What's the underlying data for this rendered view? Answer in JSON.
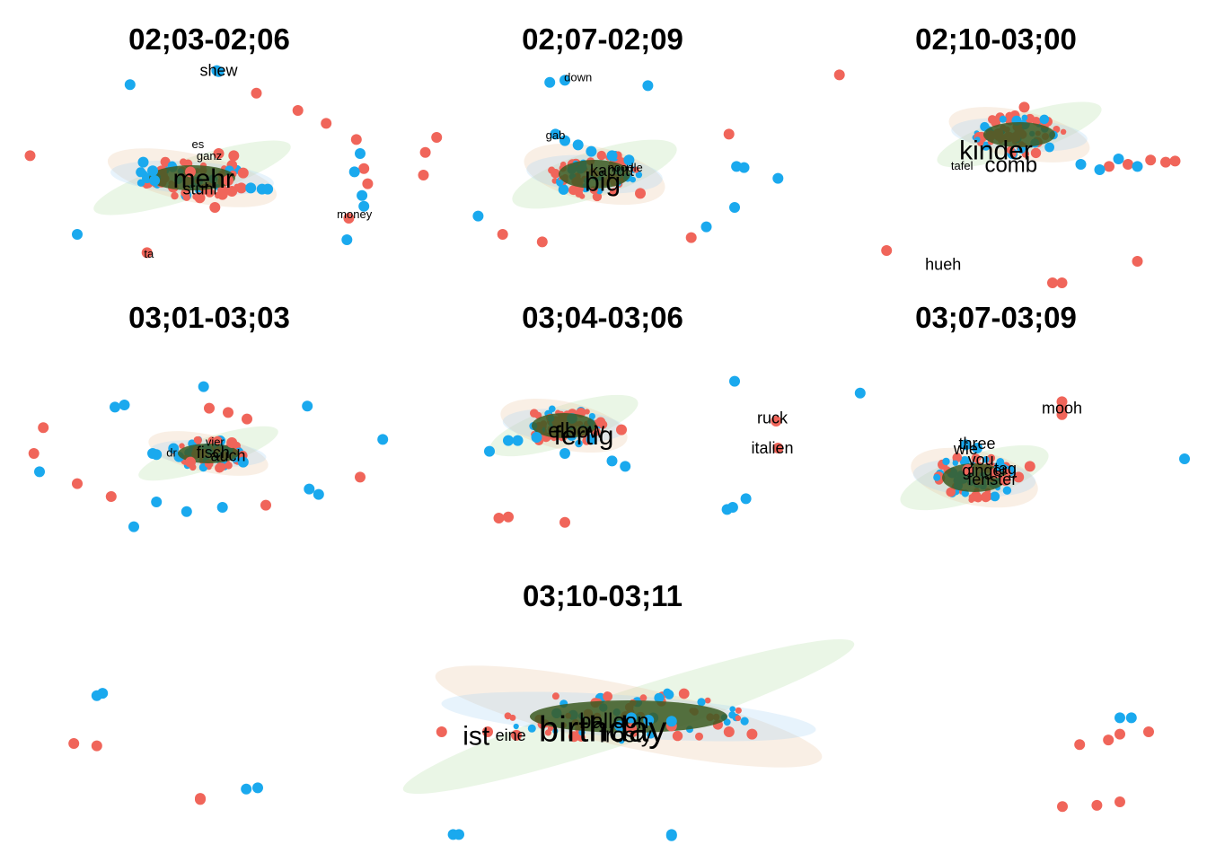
{
  "colors": {
    "series_a": "#F0655A",
    "series_b": "#1AA9EE",
    "cluster_core": "#3C5A22",
    "halo_green": "#B5E0A6",
    "halo_tan": "#E8C7A0",
    "halo_blue": "#A9D3F5",
    "halo_pink": "#F5B7E8"
  },
  "chart_data": [
    {
      "type": "scatter",
      "title": "02;03-02;06",
      "series_a_points": [
        [
          -0.95,
          0.18
        ],
        [
          0.25,
          0.76
        ],
        [
          0.47,
          0.6
        ],
        [
          0.62,
          0.48
        ],
        [
          0.78,
          0.33
        ],
        [
          0.82,
          0.06
        ],
        [
          0.84,
          -0.08
        ],
        [
          0.74,
          -0.4
        ],
        [
          -0.33,
          -0.72
        ],
        [
          0.18,
          0.02
        ],
        [
          0.17,
          -0.12
        ],
        [
          0.12,
          -0.15
        ],
        [
          -0.1,
          0.03
        ],
        [
          0.05,
          0.2
        ],
        [
          0.07,
          -0.18
        ],
        [
          0.1,
          -0.05
        ],
        [
          0.13,
          0.18
        ],
        [
          -0.05,
          -0.21
        ],
        [
          0.03,
          -0.3
        ]
      ],
      "series_b_points": [
        [
          0.04,
          0.97
        ],
        [
          0.05,
          0.96
        ],
        [
          -0.42,
          0.84
        ],
        [
          0.77,
          0.03
        ],
        [
          0.8,
          0.2
        ],
        [
          0.81,
          -0.19
        ],
        [
          0.82,
          -0.29
        ],
        [
          0.73,
          -0.6
        ],
        [
          -0.7,
          -0.55
        ],
        [
          -0.3,
          0.04
        ],
        [
          -0.35,
          0.12
        ],
        [
          0.22,
          -0.12
        ],
        [
          0.28,
          -0.13
        ],
        [
          0.31,
          -0.13
        ],
        [
          -0.29,
          -0.05
        ]
      ],
      "labels": [
        {
          "text": "shew",
          "x": 0.05,
          "y": 0.96,
          "size": "medium"
        },
        {
          "text": "es",
          "x": -0.06,
          "y": 0.28,
          "size": "small"
        },
        {
          "text": "ganz",
          "x": 0.0,
          "y": 0.17,
          "size": "small"
        },
        {
          "text": "money",
          "x": 0.77,
          "y": -0.37,
          "size": "small"
        },
        {
          "text": "ta",
          "x": -0.32,
          "y": -0.74,
          "size": "small"
        },
        {
          "text": "mehr",
          "x": -0.03,
          "y": -0.05,
          "size": "xlarge"
        },
        {
          "text": "stuhl",
          "x": -0.05,
          "y": -0.14,
          "size": "medium"
        }
      ]
    },
    {
      "type": "scatter",
      "title": "02;07-02;09",
      "series_a_points": [
        [
          0.67,
          0.38
        ],
        [
          -0.88,
          0.35
        ],
        [
          -0.94,
          0.21
        ],
        [
          -0.95,
          0.0
        ],
        [
          -0.53,
          -0.55
        ],
        [
          -0.32,
          -0.62
        ],
        [
          0.47,
          -0.58
        ],
        [
          0.2,
          -0.17
        ]
      ],
      "series_b_points": [
        [
          -0.28,
          0.86
        ],
        [
          -0.2,
          0.88
        ],
        [
          0.24,
          0.83
        ],
        [
          0.71,
          0.08
        ],
        [
          0.75,
          0.07
        ],
        [
          0.93,
          -0.03
        ],
        [
          0.7,
          -0.3
        ],
        [
          0.55,
          -0.48
        ],
        [
          -0.66,
          -0.38
        ],
        [
          -0.25,
          0.38
        ],
        [
          -0.2,
          0.32
        ],
        [
          -0.13,
          0.28
        ],
        [
          -0.06,
          0.22
        ],
        [
          0.05,
          0.18
        ],
        [
          0.14,
          0.14
        ]
      ],
      "labels": [
        {
          "text": "down",
          "x": -0.13,
          "y": 0.9,
          "size": "small"
        },
        {
          "text": "gab",
          "x": -0.25,
          "y": 0.36,
          "size": "small"
        },
        {
          "text": "big",
          "x": 0.0,
          "y": -0.08,
          "size": "xlarge"
        },
        {
          "text": "kaputt",
          "x": 0.05,
          "y": 0.03,
          "size": "medium"
        },
        {
          "text": "noodle",
          "x": 0.12,
          "y": 0.06,
          "size": "small"
        }
      ]
    },
    {
      "type": "scatter",
      "title": "02;10-03;00",
      "series_a_points": [
        [
          -0.83,
          0.93
        ],
        [
          -0.58,
          -0.7
        ],
        [
          0.75,
          -0.8
        ],
        [
          0.3,
          -1.0
        ],
        [
          0.35,
          -1.0
        ],
        [
          0.95,
          0.13
        ],
        [
          0.9,
          0.12
        ],
        [
          0.82,
          0.14
        ],
        [
          0.7,
          0.1
        ],
        [
          0.6,
          0.08
        ],
        [
          0.15,
          0.63
        ]
      ],
      "series_b_points": [
        [
          0.65,
          0.15
        ],
        [
          0.75,
          0.08
        ],
        [
          0.55,
          0.05
        ],
        [
          0.45,
          0.1
        ]
      ],
      "labels": [
        {
          "text": "hueh",
          "x": -0.28,
          "y": -0.84,
          "size": "medium"
        },
        {
          "text": "tafel",
          "x": -0.18,
          "y": 0.08,
          "size": "small"
        },
        {
          "text": "kinder",
          "x": 0.0,
          "y": 0.21,
          "size": "xlarge"
        },
        {
          "text": "comb",
          "x": 0.08,
          "y": 0.08,
          "size": "large"
        }
      ]
    },
    {
      "type": "scatter",
      "title": "03;01-03;03",
      "series_a_points": [
        [
          -0.88,
          0.24
        ],
        [
          -0.93,
          0.0
        ],
        [
          -0.7,
          -0.28
        ],
        [
          -0.52,
          -0.4
        ],
        [
          0.8,
          -0.22
        ],
        [
          0.3,
          -0.48
        ],
        [
          0.0,
          0.42
        ],
        [
          0.1,
          0.38
        ],
        [
          0.2,
          0.32
        ],
        [
          0.12,
          0.1
        ],
        [
          -0.1,
          -0.08
        ]
      ],
      "series_b_points": [
        [
          -0.5,
          0.43
        ],
        [
          -0.45,
          0.45
        ],
        [
          -0.03,
          0.62
        ],
        [
          0.52,
          0.44
        ],
        [
          0.92,
          0.13
        ],
        [
          0.58,
          -0.38
        ],
        [
          0.53,
          -0.33
        ],
        [
          -0.9,
          -0.17
        ],
        [
          -0.28,
          -0.45
        ],
        [
          -0.3,
          0.0
        ],
        [
          -0.28,
          -0.01
        ],
        [
          0.18,
          -0.08
        ],
        [
          -0.12,
          -0.54
        ],
        [
          -0.4,
          -0.68
        ],
        [
          0.07,
          -0.5
        ]
      ],
      "labels": [
        {
          "text": "dr",
          "x": -0.2,
          "y": 0.0,
          "size": "small"
        },
        {
          "text": "vier",
          "x": 0.03,
          "y": 0.1,
          "size": "small"
        },
        {
          "text": "fisch",
          "x": 0.02,
          "y": 0.0,
          "size": "medium"
        },
        {
          "text": "auch",
          "x": 0.1,
          "y": -0.03,
          "size": "medium"
        }
      ]
    },
    {
      "type": "scatter",
      "title": "03;04-03;06",
      "series_a_points": [
        [
          0.92,
          0.3
        ],
        [
          0.93,
          0.05
        ],
        [
          -0.55,
          -0.6
        ],
        [
          -0.2,
          -0.64
        ],
        [
          -0.5,
          -0.59
        ],
        [
          0.1,
          0.22
        ]
      ],
      "series_b_points": [
        [
          0.7,
          0.67
        ],
        [
          0.66,
          -0.52
        ],
        [
          0.69,
          -0.5
        ],
        [
          0.76,
          -0.42
        ],
        [
          -0.5,
          0.12
        ],
        [
          -0.45,
          0.12
        ],
        [
          -0.35,
          0.15
        ],
        [
          -0.6,
          0.02
        ],
        [
          -0.2,
          0.0
        ],
        [
          0.05,
          -0.07
        ],
        [
          0.12,
          -0.12
        ]
      ],
      "labels": [
        {
          "text": "ruck",
          "x": 0.9,
          "y": 0.32,
          "size": "medium"
        },
        {
          "text": "italien",
          "x": 0.9,
          "y": 0.04,
          "size": "medium"
        },
        {
          "text": "elbow",
          "x": -0.14,
          "y": 0.2,
          "size": "large"
        },
        {
          "text": "fertig",
          "x": -0.1,
          "y": 0.15,
          "size": "xlarge"
        }
      ]
    },
    {
      "type": "scatter",
      "title": "03;07-03;09",
      "series_a_points": [
        [
          0.35,
          0.42
        ],
        [
          0.35,
          0.48
        ],
        [
          0.35,
          0.36
        ],
        [
          -0.15,
          -0.15
        ],
        [
          0.0,
          -0.18
        ],
        [
          0.12,
          -0.22
        ],
        [
          0.18,
          -0.12
        ],
        [
          0.05,
          -0.25
        ]
      ],
      "series_b_points": [
        [
          -0.72,
          0.56
        ],
        [
          1.0,
          -0.05
        ],
        [
          -0.16,
          0.08
        ],
        [
          -0.1,
          0.05
        ],
        [
          0.02,
          -0.12
        ]
      ],
      "labels": [
        {
          "text": "mooh",
          "x": 0.35,
          "y": 0.41,
          "size": "medium"
        },
        {
          "text": "three",
          "x": -0.1,
          "y": 0.08,
          "size": "medium"
        },
        {
          "text": "wie",
          "x": -0.16,
          "y": 0.03,
          "size": "medium"
        },
        {
          "text": "you",
          "x": -0.08,
          "y": -0.07,
          "size": "medium"
        },
        {
          "text": "tag",
          "x": 0.05,
          "y": -0.15,
          "size": "medium"
        },
        {
          "text": "ginger",
          "x": -0.06,
          "y": -0.17,
          "size": "medium"
        },
        {
          "text": "fenster",
          "x": -0.02,
          "y": -0.25,
          "size": "medium"
        }
      ]
    },
    {
      "type": "scatter",
      "title": "03;10-03;11",
      "series_a_points": [
        [
          -0.88,
          -0.12
        ],
        [
          -0.92,
          -0.1
        ],
        [
          -0.7,
          -0.57
        ],
        [
          -0.7,
          -0.58
        ],
        [
          0.83,
          -0.11
        ],
        [
          0.88,
          -0.07
        ],
        [
          0.9,
          -0.02
        ],
        [
          0.95,
          0.0
        ],
        [
          0.9,
          -0.6
        ],
        [
          0.8,
          -0.64
        ],
        [
          0.86,
          -0.63
        ],
        [
          -0.28,
          0.0
        ],
        [
          -0.2,
          0.0
        ],
        [
          -0.15,
          -0.03
        ],
        [
          -0.05,
          -0.04
        ],
        [
          0.05,
          0.03
        ],
        [
          0.12,
          0.05
        ],
        [
          0.22,
          0.0
        ],
        [
          0.26,
          -0.02
        ]
      ],
      "series_b_points": [
        [
          -0.87,
          0.33
        ],
        [
          -0.88,
          0.31
        ],
        [
          -0.6,
          -0.48
        ],
        [
          -0.62,
          -0.49
        ],
        [
          -0.26,
          -0.88
        ],
        [
          -0.25,
          -0.88
        ],
        [
          0.12,
          -0.88
        ],
        [
          0.12,
          -0.89
        ],
        [
          0.9,
          0.12
        ],
        [
          0.92,
          0.12
        ],
        [
          0.05,
          0.12
        ],
        [
          0.08,
          0.1
        ],
        [
          0.12,
          0.09
        ],
        [
          0.03,
          0.05
        ]
      ],
      "labels": [
        {
          "text": "ist",
          "x": -0.22,
          "y": -0.05,
          "size": "xlarge"
        },
        {
          "text": "eine",
          "x": -0.16,
          "y": -0.04,
          "size": "medium"
        },
        {
          "text": "birthday",
          "x": 0.0,
          "y": 0.0,
          "size": "huge"
        },
        {
          "text": "balloon",
          "x": 0.02,
          "y": 0.08,
          "size": "large"
        },
        {
          "text": "frosty",
          "x": 0.04,
          "y": -0.04,
          "size": "large"
        }
      ]
    }
  ]
}
